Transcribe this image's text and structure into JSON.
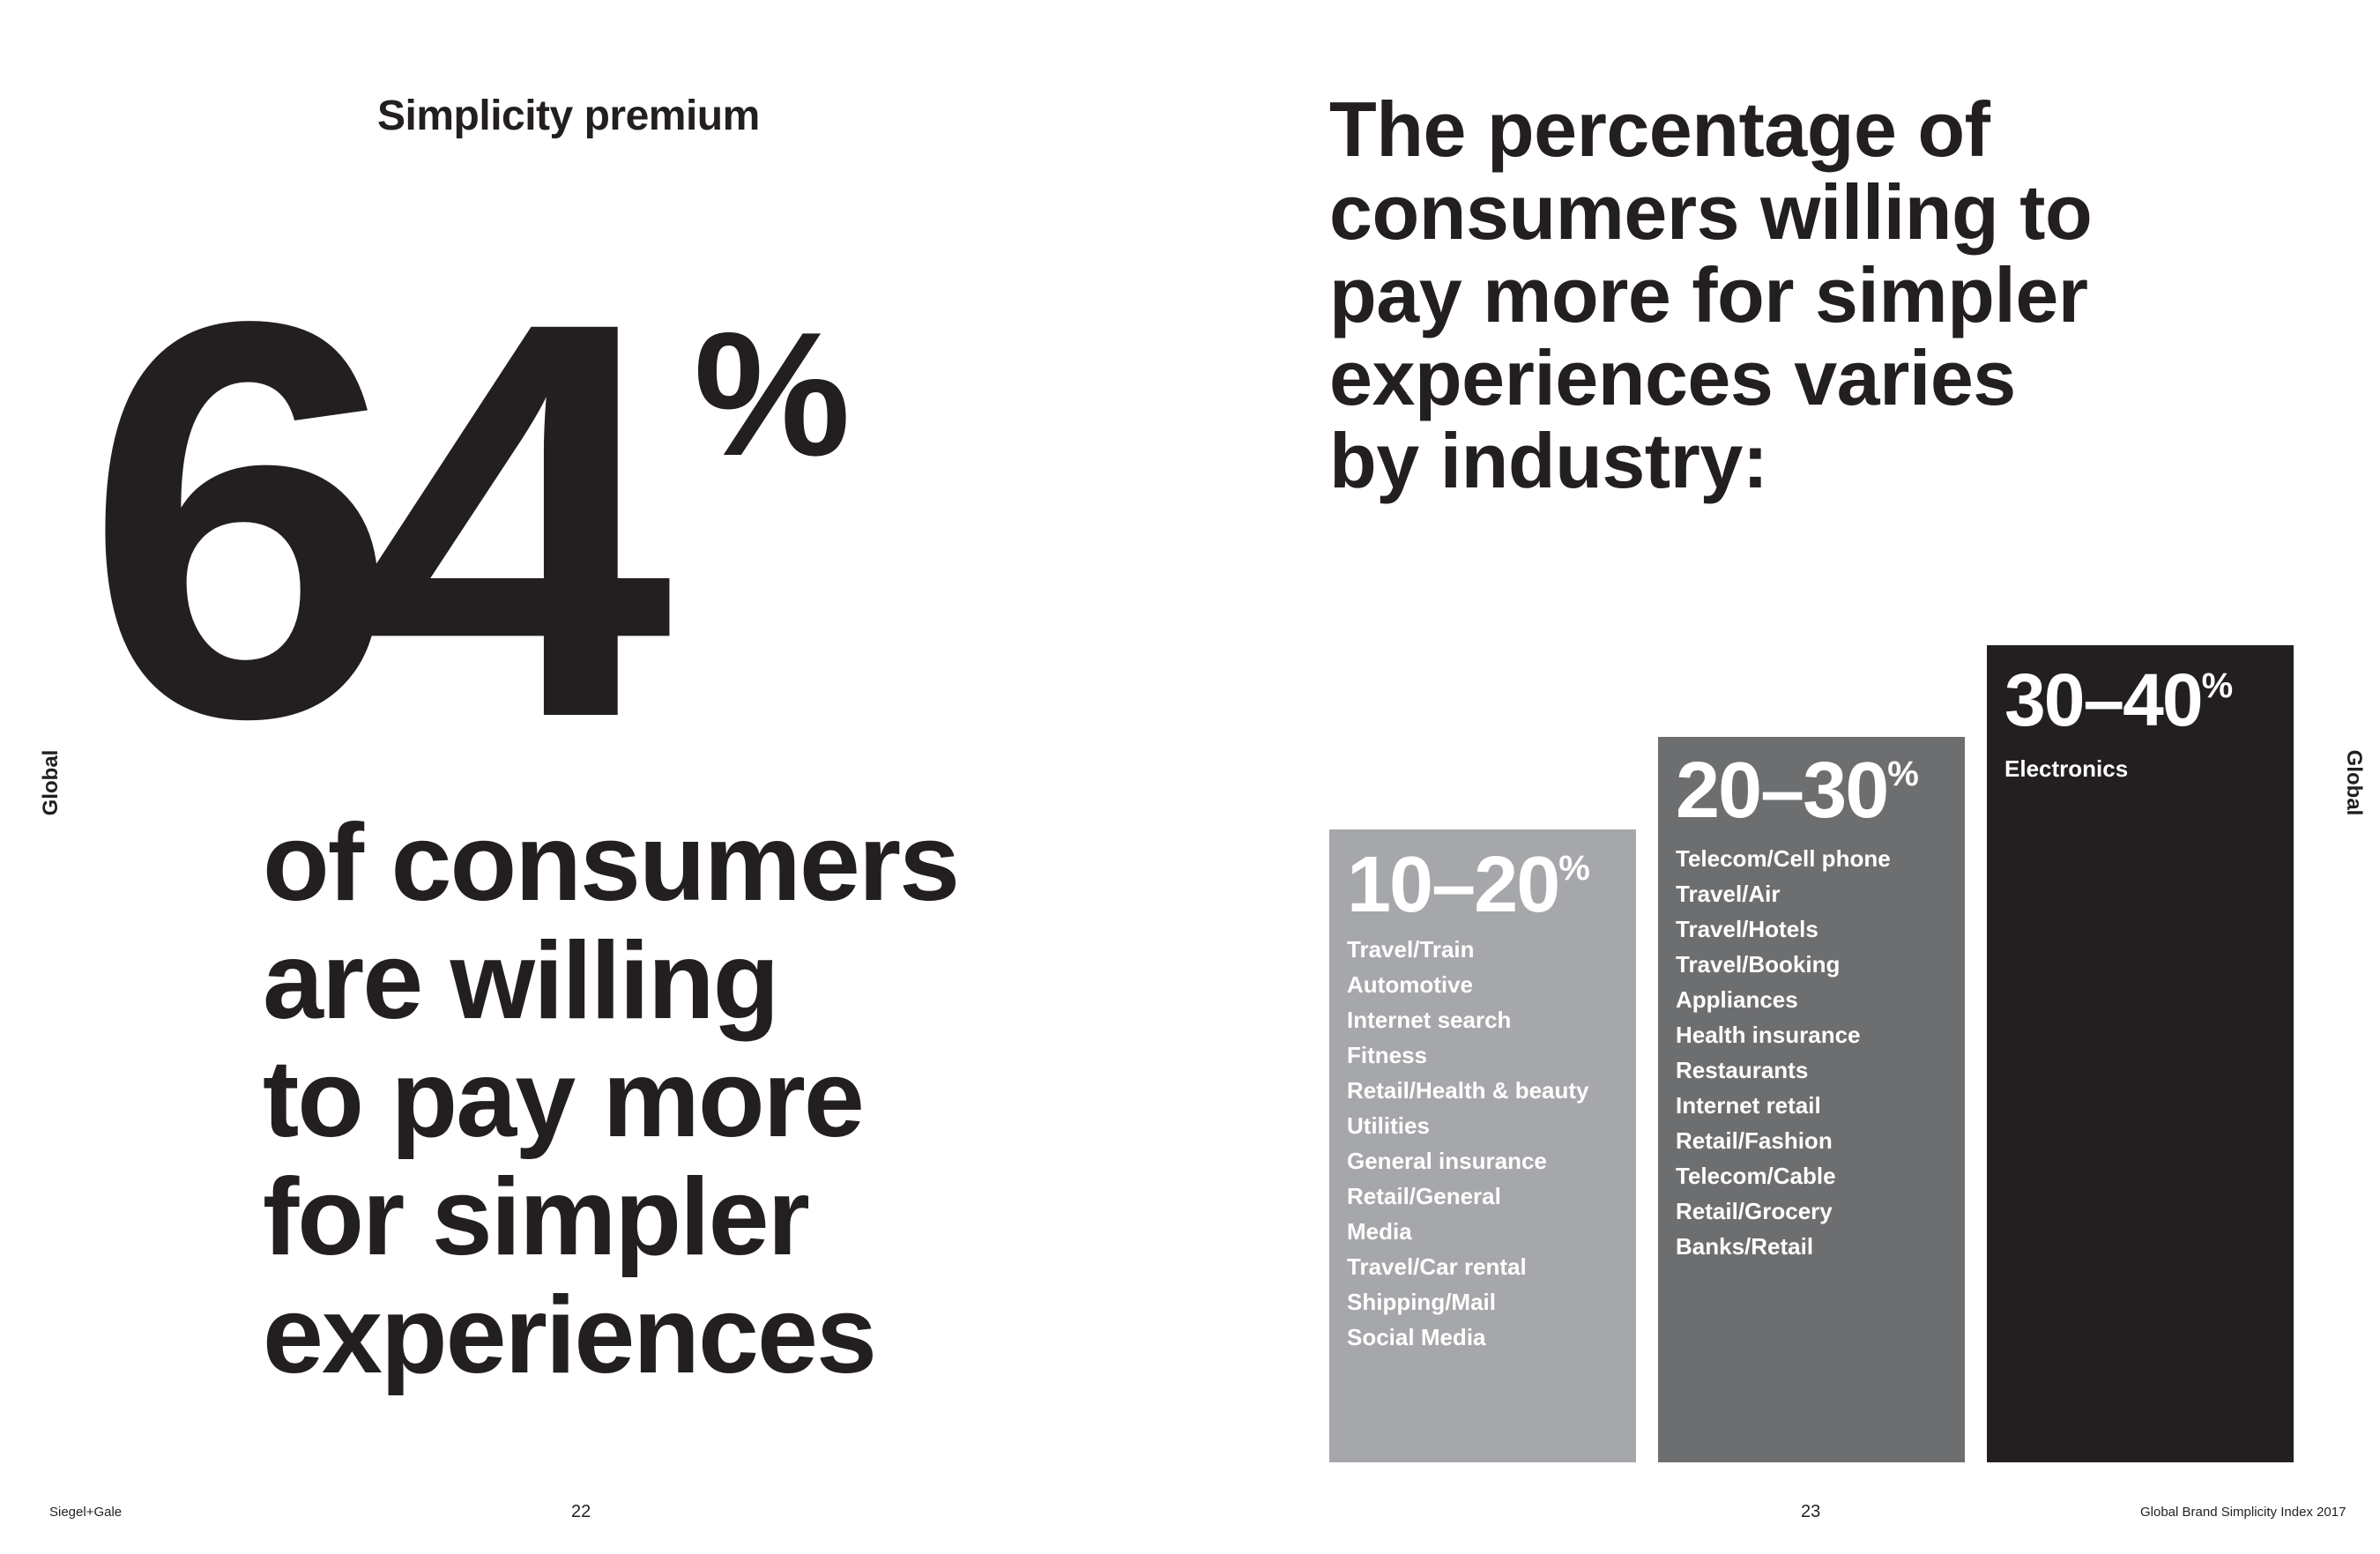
{
  "left_page": {
    "section_title": "Simplicity premium",
    "big_number": "64",
    "big_number_suffix": "%",
    "caption_lines": [
      "of consumers",
      "are willing",
      "to pay more",
      "for simpler",
      "experiences"
    ],
    "side_label": "Global"
  },
  "right_page": {
    "title_lines": [
      "The percentage of",
      "consumers willing to",
      "pay more for simpler",
      "experiences varies",
      "by industry:"
    ],
    "side_label": "Global",
    "bars": [
      {
        "range": "10–20",
        "suffix": "%",
        "color": "#a6a7aa",
        "industries": [
          "Travel/Train",
          "Automotive",
          "Internet search",
          "Fitness",
          "Retail/Health & beauty",
          "Utilities",
          "General insurance",
          "Retail/General",
          "Media",
          "Travel/Car rental",
          "Shipping/Mail",
          "Social Media"
        ]
      },
      {
        "range": "20–30",
        "suffix": "%",
        "color": "#6d6e70",
        "industries": [
          "Telecom/Cell phone",
          "Travel/Air",
          "Travel/Hotels",
          "Travel/Booking",
          "Appliances",
          "Health insurance",
          "Restaurants",
          "Internet retail",
          "Retail/Fashion",
          "Telecom/Cable",
          "Retail/Grocery",
          "Banks/Retail"
        ]
      },
      {
        "range": "30–40",
        "suffix": "%",
        "color": "#231f20",
        "industries": [
          "Electronics"
        ]
      }
    ]
  },
  "footer": {
    "brand": "Siegel+Gale",
    "page_left": "22",
    "page_right": "23",
    "report": "Global Brand Simplicity Index 2017"
  }
}
